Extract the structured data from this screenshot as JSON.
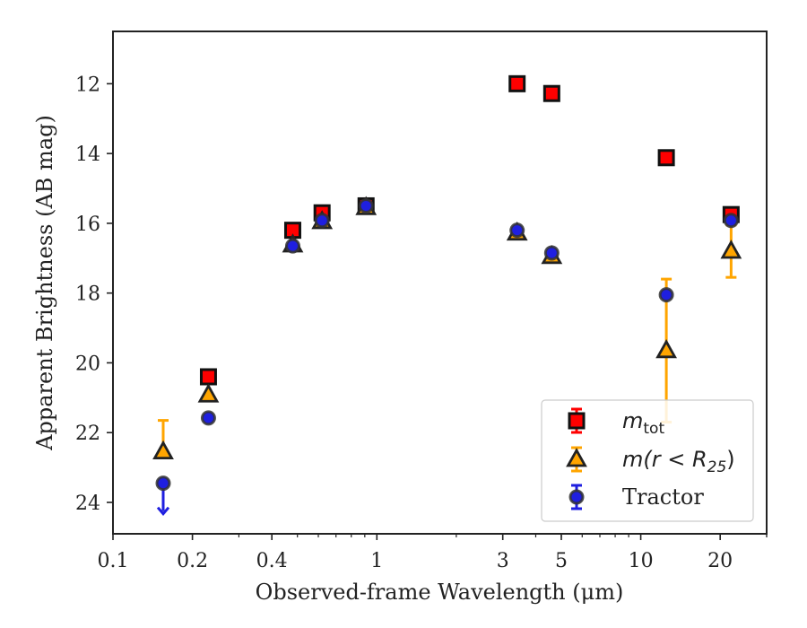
{
  "chart_data": {
    "type": "scatter",
    "title": "",
    "xlabel": "Observed-frame Wavelength (μm)",
    "ylabel": "Apparent Brightness (AB mag)",
    "xscale": "log",
    "xlim": [
      0.1,
      30
    ],
    "ylim": [
      24.9,
      10.5
    ],
    "y_inverted": true,
    "x_ticks": [
      0.1,
      0.2,
      0.4,
      1,
      3,
      5,
      10,
      20
    ],
    "x_tick_labels": [
      "0.1",
      "0.2",
      "0.4",
      "1",
      "3",
      "5",
      "10",
      "20"
    ],
    "y_ticks": [
      12,
      14,
      16,
      18,
      20,
      22,
      24
    ],
    "y_tick_labels": [
      "12",
      "14",
      "16",
      "18",
      "20",
      "22",
      "24"
    ],
    "grid": false,
    "legend_position": "lower-right",
    "series": [
      {
        "key": "mtot",
        "name": "m_tot",
        "legend_main": "m",
        "legend_sub": "tot",
        "marker": "square",
        "color": "#ff0000",
        "edge_color": "#111111",
        "points": [
          {
            "x": 0.23,
            "y": 20.4
          },
          {
            "x": 0.48,
            "y": 16.2
          },
          {
            "x": 0.62,
            "y": 15.7
          },
          {
            "x": 0.91,
            "y": 15.5
          },
          {
            "x": 3.4,
            "y": 12.0
          },
          {
            "x": 4.6,
            "y": 12.28
          },
          {
            "x": 12.5,
            "y": 14.12
          },
          {
            "x": 22.0,
            "y": 15.75
          }
        ]
      },
      {
        "key": "mr25",
        "name": "m(r < R25)",
        "legend_main": "m(r < R",
        "legend_sub": "25",
        "legend_tail": ")",
        "marker": "triangle",
        "color": "#ffa500",
        "edge_color": "#222222",
        "points": [
          {
            "x": 0.155,
            "y": 22.55,
            "err": [
              0.9,
              0.0
            ]
          },
          {
            "x": 0.23,
            "y": 20.92
          },
          {
            "x": 0.48,
            "y": 16.62
          },
          {
            "x": 0.62,
            "y": 15.95
          },
          {
            "x": 0.91,
            "y": 15.55
          },
          {
            "x": 3.4,
            "y": 16.28
          },
          {
            "x": 4.6,
            "y": 16.95
          },
          {
            "x": 12.5,
            "y": 19.65,
            "err": [
              2.05,
              2.05
            ]
          },
          {
            "x": 22.0,
            "y": 16.8,
            "err": [
              0.75,
              0.75
            ]
          }
        ]
      },
      {
        "key": "tractor",
        "name": "Tractor",
        "legend_main": "Tractor",
        "marker": "circle",
        "color": "#1f1fe0",
        "edge_color": "#333333",
        "points": [
          {
            "x": 0.155,
            "y": 23.45,
            "upper_limit": true
          },
          {
            "x": 0.23,
            "y": 21.58
          },
          {
            "x": 0.48,
            "y": 16.65
          },
          {
            "x": 0.62,
            "y": 15.92
          },
          {
            "x": 0.91,
            "y": 15.5
          },
          {
            "x": 3.4,
            "y": 16.2
          },
          {
            "x": 4.6,
            "y": 16.85
          },
          {
            "x": 12.5,
            "y": 18.05
          },
          {
            "x": 22.0,
            "y": 15.92
          }
        ]
      }
    ]
  }
}
